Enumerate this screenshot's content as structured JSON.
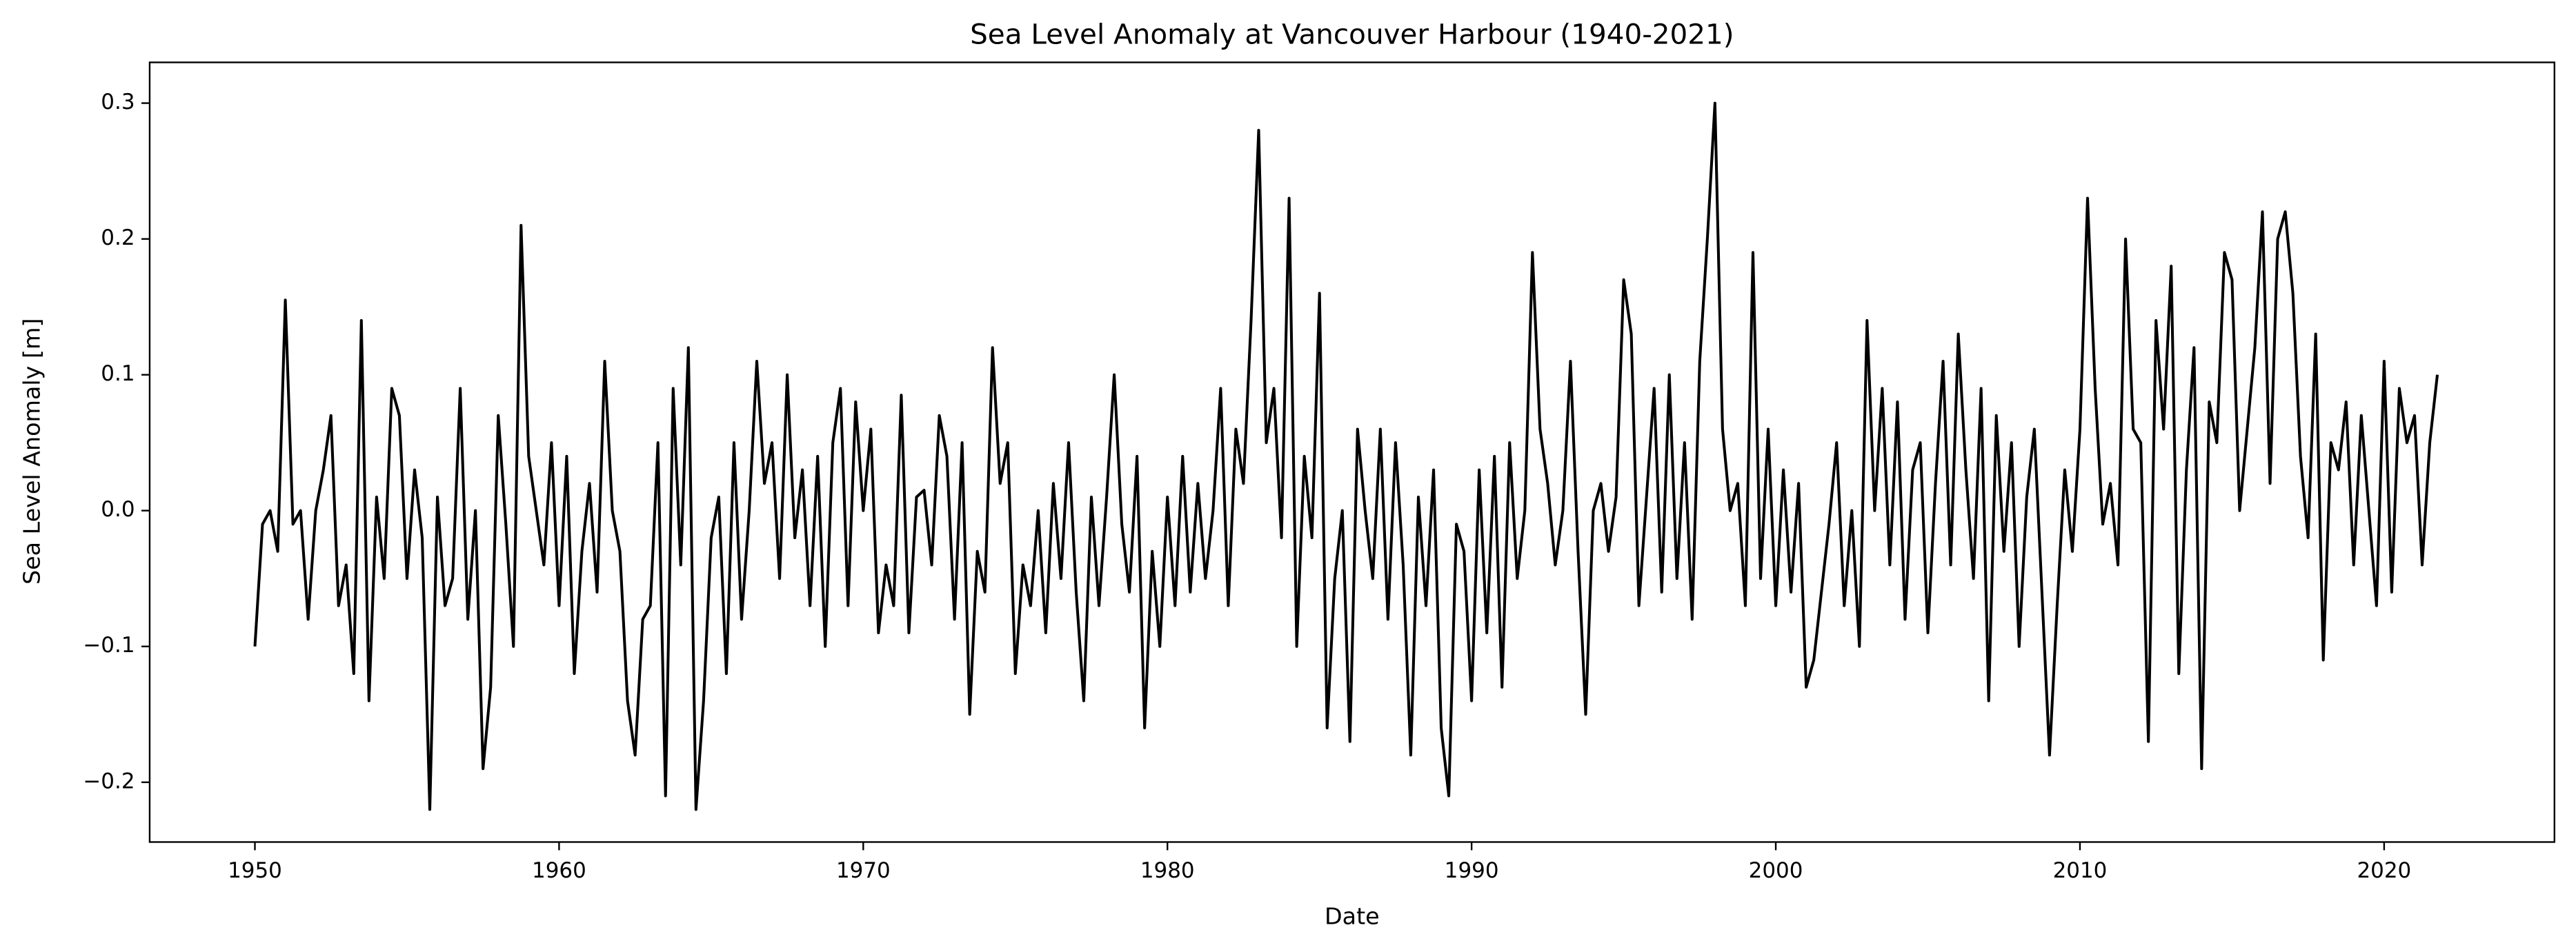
{
  "chart_data": {
    "type": "line",
    "title": "Sea Level Anomaly at Vancouver Harbour (1940-2021)",
    "x_label": "Date",
    "y_label": "Sea Level Anomaly [m]",
    "color": "#000000",
    "xlim": [
      1946.54,
      2025.6
    ],
    "ylim": [
      -0.244,
      0.33
    ],
    "xticks": [
      1950,
      1960,
      1970,
      1980,
      1990,
      2000,
      2010,
      2020
    ],
    "yticks": [
      {
        "value": -0.2,
        "label": "−0.2"
      },
      {
        "value": -0.1,
        "label": "−0.1"
      },
      {
        "value": 0.0,
        "label": "0.0"
      },
      0.1,
      0.2,
      0.3
    ],
    "x": [
      1950,
      1950.25,
      1950.5,
      1950.75,
      1951,
      1951.25,
      1951.5,
      1951.75,
      1952,
      1952.25,
      1952.5,
      1952.75,
      1953,
      1953.25,
      1953.5,
      1953.75,
      1954,
      1954.25,
      1954.5,
      1954.75,
      1955,
      1955.25,
      1955.5,
      1955.75,
      1956,
      1956.25,
      1956.5,
      1956.75,
      1957,
      1957.25,
      1957.5,
      1957.75,
      1958,
      1958.25,
      1958.5,
      1958.75,
      1959,
      1959.25,
      1959.5,
      1959.75,
      1960,
      1960.25,
      1960.5,
      1960.75,
      1961,
      1961.25,
      1961.5,
      1961.75,
      1962,
      1962.25,
      1962.5,
      1962.75,
      1963,
      1963.25,
      1963.5,
      1963.75,
      1964,
      1964.25,
      1964.5,
      1964.75,
      1965,
      1965.25,
      1965.5,
      1965.75,
      1966,
      1966.25,
      1966.5,
      1966.75,
      1967,
      1967.25,
      1967.5,
      1967.75,
      1968,
      1968.25,
      1968.5,
      1968.75,
      1969,
      1969.25,
      1969.5,
      1969.75,
      1970,
      1970.25,
      1970.5,
      1970.75,
      1971,
      1971.25,
      1971.5,
      1971.75,
      1972,
      1972.25,
      1972.5,
      1972.75,
      1973,
      1973.25,
      1973.5,
      1973.75,
      1974,
      1974.25,
      1974.5,
      1974.75,
      1975,
      1975.25,
      1975.5,
      1975.75,
      1976,
      1976.25,
      1976.5,
      1976.75,
      1977,
      1977.25,
      1977.5,
      1977.75,
      1978,
      1978.25,
      1978.5,
      1978.75,
      1979,
      1979.25,
      1979.5,
      1979.75,
      1980,
      1980.25,
      1980.5,
      1980.75,
      1981,
      1981.25,
      1981.5,
      1981.75,
      1982,
      1982.25,
      1982.5,
      1982.75,
      1983,
      1983.25,
      1983.5,
      1983.75,
      1984,
      1984.25,
      1984.5,
      1984.75,
      1985,
      1985.25,
      1985.5,
      1985.75,
      1986,
      1986.25,
      1986.5,
      1986.75,
      1987,
      1987.25,
      1987.5,
      1987.75,
      1988,
      1988.25,
      1988.5,
      1988.75,
      1989,
      1989.25,
      1989.5,
      1989.75,
      1990,
      1990.25,
      1990.5,
      1990.75,
      1991,
      1991.25,
      1991.5,
      1991.75,
      1992,
      1992.25,
      1992.5,
      1992.75,
      1993,
      1993.25,
      1993.5,
      1993.75,
      1994,
      1994.25,
      1994.5,
      1994.75,
      1995,
      1995.25,
      1995.5,
      1995.75,
      1996,
      1996.25,
      1996.5,
      1996.75,
      1997,
      1997.25,
      1997.5,
      1997.75,
      1998,
      1998.25,
      1998.5,
      1998.75,
      1999,
      1999.25,
      1999.5,
      1999.75,
      2000,
      2000.25,
      2000.5,
      2000.75,
      2001,
      2001.25,
      2001.5,
      2001.75,
      2002,
      2002.25,
      2002.5,
      2002.75,
      2003,
      2003.25,
      2003.5,
      2003.75,
      2004,
      2004.25,
      2004.5,
      2004.75,
      2005,
      2005.25,
      2005.5,
      2005.75,
      2006,
      2006.25,
      2006.5,
      2006.75,
      2007,
      2007.25,
      2007.5,
      2007.75,
      2008,
      2008.25,
      2008.5,
      2008.75,
      2009,
      2009.25,
      2009.5,
      2009.75,
      2010,
      2010.25,
      2010.5,
      2010.75,
      2011,
      2011.25,
      2011.5,
      2011.75,
      2012,
      2012.25,
      2012.5,
      2012.75,
      2013,
      2013.25,
      2013.5,
      2013.75,
      2014,
      2014.25,
      2014.5,
      2014.75,
      2015,
      2015.25,
      2015.5,
      2015.75,
      2016,
      2016.25,
      2016.5,
      2016.75,
      2017,
      2017.25,
      2017.5,
      2017.75,
      2018,
      2018.25,
      2018.5,
      2018.75,
      2019,
      2019.25,
      2019.5,
      2019.75,
      2020,
      2020.25,
      2020.5,
      2020.75,
      2021,
      2021.25,
      2021.5,
      2021.75
    ],
    "values": [
      -0.1,
      -0.01,
      0.0,
      -0.03,
      0.155,
      -0.01,
      0.0,
      -0.08,
      0.0,
      0.03,
      0.07,
      -0.07,
      -0.04,
      -0.12,
      0.14,
      -0.14,
      0.01,
      -0.05,
      0.09,
      0.07,
      -0.05,
      0.03,
      -0.02,
      -0.22,
      0.01,
      -0.07,
      -0.05,
      0.09,
      -0.08,
      0.0,
      -0.19,
      -0.13,
      0.07,
      -0.01,
      -0.1,
      0.21,
      0.04,
      0.0,
      -0.04,
      0.05,
      -0.07,
      0.04,
      -0.12,
      -0.03,
      0.02,
      -0.06,
      0.11,
      0.0,
      -0.03,
      -0.14,
      -0.18,
      -0.08,
      -0.07,
      0.05,
      -0.21,
      0.09,
      -0.04,
      0.12,
      -0.22,
      -0.14,
      -0.02,
      0.01,
      -0.12,
      0.05,
      -0.08,
      0.0,
      0.11,
      0.02,
      0.05,
      -0.05,
      0.1,
      -0.02,
      0.03,
      -0.07,
      0.04,
      -0.1,
      0.05,
      0.09,
      -0.07,
      0.08,
      0.0,
      0.06,
      -0.09,
      -0.04,
      -0.07,
      0.085,
      -0.09,
      0.01,
      0.015,
      -0.04,
      0.07,
      0.04,
      -0.08,
      0.05,
      -0.15,
      -0.03,
      -0.06,
      0.12,
      0.02,
      0.05,
      -0.12,
      -0.04,
      -0.07,
      0.0,
      -0.09,
      0.02,
      -0.05,
      0.05,
      -0.06,
      -0.14,
      0.01,
      -0.07,
      0.01,
      0.1,
      -0.01,
      -0.06,
      0.04,
      -0.16,
      -0.03,
      -0.1,
      0.01,
      -0.07,
      0.04,
      -0.06,
      0.02,
      -0.05,
      0.0,
      0.09,
      -0.07,
      0.06,
      0.02,
      0.14,
      0.28,
      0.05,
      0.09,
      -0.02,
      0.23,
      -0.1,
      0.04,
      -0.02,
      0.16,
      -0.16,
      -0.05,
      0.0,
      -0.17,
      0.06,
      0.0,
      -0.05,
      0.06,
      -0.08,
      0.05,
      -0.04,
      -0.18,
      0.01,
      -0.07,
      0.03,
      -0.16,
      -0.21,
      -0.01,
      -0.03,
      -0.14,
      0.03,
      -0.09,
      0.04,
      -0.13,
      0.05,
      -0.05,
      0.0,
      0.19,
      0.06,
      0.02,
      -0.04,
      0.0,
      0.11,
      -0.03,
      -0.15,
      0.0,
      0.02,
      -0.03,
      0.01,
      0.17,
      0.13,
      -0.07,
      0.01,
      0.09,
      -0.06,
      0.1,
      -0.05,
      0.05,
      -0.08,
      0.11,
      0.2,
      0.3,
      0.06,
      0.0,
      0.02,
      -0.07,
      0.19,
      -0.05,
      0.06,
      -0.07,
      0.03,
      -0.06,
      0.02,
      -0.13,
      -0.11,
      -0.06,
      -0.01,
      0.05,
      -0.07,
      0.0,
      -0.1,
      0.14,
      0.0,
      0.09,
      -0.04,
      0.08,
      -0.08,
      0.03,
      0.05,
      -0.09,
      0.02,
      0.11,
      -0.04,
      0.13,
      0.03,
      -0.05,
      0.09,
      -0.14,
      0.07,
      -0.03,
      0.05,
      -0.1,
      0.01,
      0.06,
      -0.06,
      -0.18,
      -0.07,
      0.03,
      -0.03,
      0.06,
      0.23,
      0.09,
      -0.01,
      0.02,
      -0.04,
      0.2,
      0.06,
      0.05,
      -0.17,
      0.14,
      0.06,
      0.18,
      -0.12,
      0.03,
      0.12,
      -0.19,
      0.08,
      0.05,
      0.19,
      0.17,
      0.0,
      0.06,
      0.12,
      0.22,
      0.02,
      0.2,
      0.22,
      0.16,
      0.04,
      -0.02,
      0.13,
      -0.11,
      0.05,
      0.03,
      0.08,
      -0.04,
      0.07,
      0.0,
      -0.07,
      0.11,
      -0.06,
      0.09,
      0.05,
      0.07,
      -0.04,
      0.05,
      0.1
    ]
  }
}
